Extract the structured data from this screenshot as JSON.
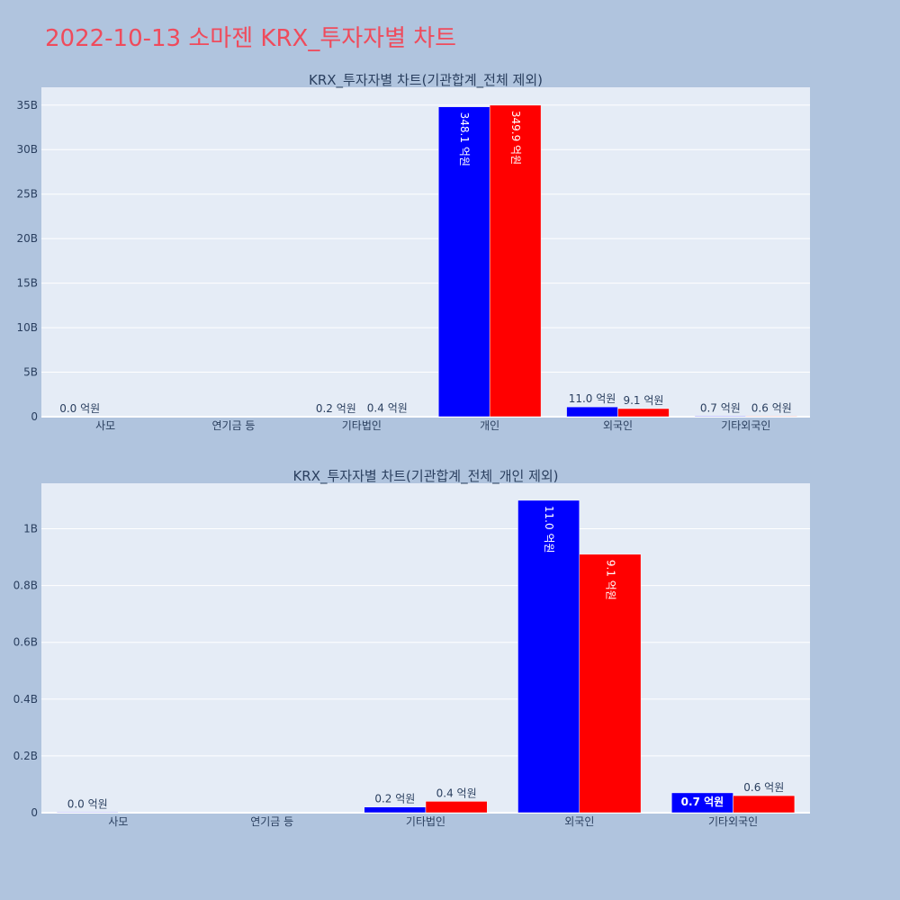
{
  "title": "2022-10-13 소마젠 KRX_투자자별 차트",
  "colors": {
    "buy": "#0000ff",
    "sell": "#ff0000",
    "plot_bg": "#e5ecf6",
    "page_bg": "#b0c4de",
    "title": "#ef4b5c"
  },
  "chart_data": [
    {
      "type": "bar",
      "title": "KRX_투자자별 차트(기관합계_전체 제외)",
      "categories": [
        "사모",
        "연기금 등",
        "기타법인",
        "개인",
        "외국인",
        "기타외국인"
      ],
      "series": [
        {
          "values": [
            2000000,
            0,
            20000000,
            34810000000,
            1100000000,
            70000000
          ],
          "labels": [
            "0.0 억원",
            "",
            "0.2 억원",
            "348.1 억원",
            "11.0 억원",
            "0.7 억원"
          ]
        },
        {
          "values": [
            0,
            0,
            40000000,
            34990000000,
            910000000,
            60000000
          ],
          "labels": [
            "",
            "",
            "0.4 억원",
            "349.9 억원",
            "9.1 억원",
            "0.6 억원"
          ]
        }
      ],
      "ylim": [
        0,
        37000000000
      ],
      "yticks": [
        0,
        5000000000,
        10000000000,
        15000000000,
        20000000000,
        25000000000,
        30000000000,
        35000000000
      ],
      "ytick_labels": [
        "0",
        "5B",
        "10B",
        "15B",
        "20B",
        "25B",
        "30B",
        "35B"
      ],
      "grid": true,
      "legend": "none"
    },
    {
      "type": "bar",
      "title": "KRX_투자자별 차트(기관합계_전체_개인 제외)",
      "categories": [
        "사모",
        "연기금 등",
        "기타법인",
        "외국인",
        "기타외국인"
      ],
      "series": [
        {
          "values": [
            2000000,
            0,
            20000000,
            1100000000,
            70000000
          ],
          "labels": [
            "0.0 억원",
            "",
            "0.2 억원",
            "11.0 억원",
            "0.7 억원"
          ]
        },
        {
          "values": [
            0,
            0,
            40000000,
            910000000,
            60000000
          ],
          "labels": [
            "",
            "",
            "0.4 억원",
            "9.1 억원",
            "0.6 억원"
          ]
        }
      ],
      "ylim": [
        0,
        1160000000
      ],
      "yticks": [
        0,
        200000000,
        400000000,
        600000000,
        800000000,
        1000000000
      ],
      "ytick_labels": [
        "0",
        "0.2B",
        "0.4B",
        "0.6B",
        "0.8B",
        "1B"
      ],
      "grid": true,
      "legend": "none"
    }
  ]
}
